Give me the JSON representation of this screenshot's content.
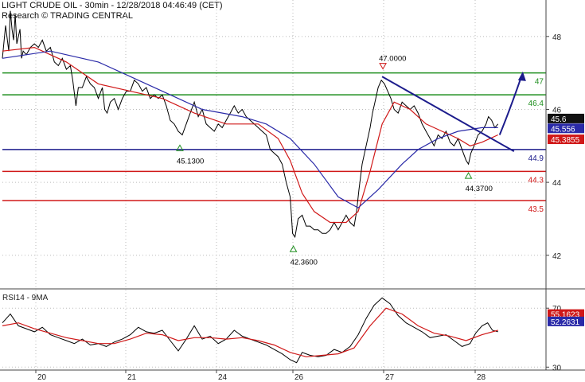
{
  "header": {
    "line1": "LIGHT CRUDE OIL - 30min - 12/28/2018 04:46:49 (CET)",
    "line2": "Research © TRADING CENTRAL"
  },
  "rsi_label": "RSI14 - 9MA",
  "chart_data": {
    "type": "line",
    "price_axis": {
      "ylim": [
        41.1,
        49.0
      ],
      "ticks": [
        "48",
        "46",
        "44",
        "42"
      ]
    },
    "rsi_axis": {
      "ylim": [
        28,
        82
      ],
      "ticks": [
        "70",
        "30"
      ]
    },
    "x_labels": [
      "20",
      "21",
      "24",
      "26",
      "27",
      "28"
    ],
    "levels": [
      {
        "value": 47.0,
        "label": "47",
        "color": "#1f8f1f"
      },
      {
        "value": 46.4,
        "label": "46.4",
        "color": "#1f8f1f"
      },
      {
        "value": 44.9,
        "label": "44.9",
        "color": "#1c1c8c"
      },
      {
        "value": 44.3,
        "label": "44.3",
        "color": "#d01818"
      },
      {
        "value": 43.5,
        "label": "43.5",
        "color": "#d01818"
      }
    ],
    "annotations": [
      {
        "label": "47.0000",
        "value": 47.0,
        "kind": "high"
      },
      {
        "label": "45.1300",
        "value": 45.13,
        "kind": "low"
      },
      {
        "label": "42.3600",
        "value": 42.36,
        "kind": "low"
      },
      {
        "label": "44.3700",
        "value": 44.37,
        "kind": "low"
      }
    ],
    "price_badges": [
      {
        "label": "45.6",
        "bg": "#111111",
        "fg": "#ffffff"
      },
      {
        "label": "45.556",
        "bg": "#2a2aa8",
        "fg": "#ffffff"
      },
      {
        "label": "45.3855",
        "bg": "#d01818",
        "fg": "#ffffff"
      }
    ],
    "rsi_badges": [
      {
        "label": "55.1623",
        "bg": "#d01818",
        "fg": "#ffffff"
      },
      {
        "label": "52.2631",
        "bg": "#2a2aa8",
        "fg": "#ffffff"
      }
    ],
    "series": [
      {
        "name": "price",
        "color": "#000000",
        "values": [
          [
            0,
            47.4
          ],
          [
            4,
            48.3
          ],
          [
            8,
            47.6
          ],
          [
            10,
            48.7
          ],
          [
            12,
            48.2
          ],
          [
            14,
            47.9
          ],
          [
            16,
            48.6
          ],
          [
            18,
            47.8
          ],
          [
            22,
            48.2
          ],
          [
            24,
            47.4
          ],
          [
            26,
            47.6
          ],
          [
            30,
            47.5
          ],
          [
            35,
            47.7
          ],
          [
            40,
            47.8
          ],
          [
            45,
            47.7
          ],
          [
            50,
            47.9
          ],
          [
            55,
            47.6
          ],
          [
            60,
            47.7
          ],
          [
            65,
            47.3
          ],
          [
            70,
            47.2
          ],
          [
            75,
            47.4
          ],
          [
            80,
            47.1
          ],
          [
            85,
            47.2
          ],
          [
            88,
            46.8
          ],
          [
            92,
            46.1
          ],
          [
            95,
            46.6
          ],
          [
            100,
            46.6
          ],
          [
            105,
            46.9
          ],
          [
            110,
            46.7
          ],
          [
            115,
            46.6
          ],
          [
            120,
            46.3
          ],
          [
            125,
            46.6
          ],
          [
            128,
            46.0
          ],
          [
            131,
            45.9
          ],
          [
            135,
            46.2
          ],
          [
            140,
            46.3
          ],
          [
            145,
            46.0
          ],
          [
            150,
            46.3
          ],
          [
            155,
            46.5
          ],
          [
            160,
            46.5
          ],
          [
            165,
            46.8
          ],
          [
            170,
            46.7
          ],
          [
            175,
            46.5
          ],
          [
            180,
            46.6
          ],
          [
            185,
            46.3
          ],
          [
            190,
            46.4
          ],
          [
            195,
            46.3
          ],
          [
            200,
            46.4
          ],
          [
            205,
            46.1
          ],
          [
            210,
            45.7
          ],
          [
            215,
            45.6
          ],
          [
            220,
            45.4
          ],
          [
            225,
            45.3
          ],
          [
            230,
            45.6
          ],
          [
            235,
            45.9
          ],
          [
            240,
            46.2
          ],
          [
            245,
            45.8
          ],
          [
            250,
            46.0
          ],
          [
            255,
            45.6
          ],
          [
            260,
            45.5
          ],
          [
            265,
            45.4
          ],
          [
            270,
            45.6
          ],
          [
            275,
            45.5
          ],
          [
            280,
            45.7
          ],
          [
            285,
            45.9
          ],
          [
            290,
            46.1
          ],
          [
            295,
            45.9
          ],
          [
            300,
            46.0
          ],
          [
            305,
            45.8
          ],
          [
            310,
            45.7
          ],
          [
            315,
            45.6
          ],
          [
            320,
            45.5
          ],
          [
            325,
            45.4
          ],
          [
            330,
            45.3
          ],
          [
            335,
            44.9
          ],
          [
            340,
            44.8
          ],
          [
            345,
            44.7
          ],
          [
            350,
            44.5
          ],
          [
            355,
            44.0
          ],
          [
            360,
            43.6
          ],
          [
            363,
            42.6
          ],
          [
            366,
            42.5
          ],
          [
            370,
            43.0
          ],
          [
            375,
            43.1
          ],
          [
            380,
            42.8
          ],
          [
            385,
            42.8
          ],
          [
            390,
            42.7
          ],
          [
            395,
            42.7
          ],
          [
            400,
            42.6
          ],
          [
            405,
            42.6
          ],
          [
            410,
            42.7
          ],
          [
            415,
            42.9
          ],
          [
            420,
            42.7
          ],
          [
            425,
            42.9
          ],
          [
            430,
            43.1
          ],
          [
            435,
            42.9
          ],
          [
            440,
            42.8
          ],
          [
            443,
            43.2
          ],
          [
            446,
            43.8
          ],
          [
            450,
            44.5
          ],
          [
            455,
            45.0
          ],
          [
            460,
            45.5
          ],
          [
            463,
            45.9
          ],
          [
            466,
            46.2
          ],
          [
            470,
            46.6
          ],
          [
            474,
            46.8
          ],
          [
            478,
            46.7
          ],
          [
            482,
            46.5
          ],
          [
            486,
            46.3
          ],
          [
            490,
            46.0
          ],
          [
            495,
            45.9
          ],
          [
            500,
            46.2
          ],
          [
            505,
            46.1
          ],
          [
            510,
            46.0
          ],
          [
            515,
            46.1
          ],
          [
            520,
            45.9
          ],
          [
            525,
            45.6
          ],
          [
            530,
            45.4
          ],
          [
            535,
            45.2
          ],
          [
            540,
            45.0
          ],
          [
            545,
            45.3
          ],
          [
            550,
            45.2
          ],
          [
            555,
            45.4
          ],
          [
            560,
            45.1
          ],
          [
            565,
            45.0
          ],
          [
            570,
            45.2
          ],
          [
            575,
            44.9
          ],
          [
            580,
            44.6
          ],
          [
            583,
            44.5
          ],
          [
            586,
            44.8
          ],
          [
            590,
            45.0
          ],
          [
            595,
            45.3
          ],
          [
            600,
            45.4
          ],
          [
            605,
            45.6
          ],
          [
            608,
            45.8
          ],
          [
            612,
            45.7
          ],
          [
            616,
            45.5
          ],
          [
            620,
            45.6
          ]
        ]
      },
      {
        "name": "ma-red",
        "color": "#d01818",
        "values": [
          [
            0,
            47.6
          ],
          [
            40,
            47.7
          ],
          [
            80,
            47.3
          ],
          [
            120,
            46.7
          ],
          [
            160,
            46.5
          ],
          [
            200,
            46.3
          ],
          [
            240,
            45.9
          ],
          [
            280,
            45.6
          ],
          [
            320,
            45.6
          ],
          [
            345,
            45.2
          ],
          [
            360,
            44.6
          ],
          [
            375,
            43.7
          ],
          [
            390,
            43.2
          ],
          [
            410,
            42.9
          ],
          [
            430,
            42.9
          ],
          [
            445,
            43.2
          ],
          [
            460,
            44.3
          ],
          [
            475,
            45.6
          ],
          [
            490,
            46.2
          ],
          [
            510,
            46.0
          ],
          [
            530,
            45.6
          ],
          [
            550,
            45.4
          ],
          [
            570,
            45.2
          ],
          [
            585,
            45.0
          ],
          [
            600,
            45.1
          ],
          [
            620,
            45.3
          ]
        ]
      },
      {
        "name": "ma-blue",
        "color": "#2a2aa8",
        "values": [
          [
            0,
            47.4
          ],
          [
            60,
            47.6
          ],
          [
            120,
            47.3
          ],
          [
            160,
            46.9
          ],
          [
            200,
            46.5
          ],
          [
            250,
            46.0
          ],
          [
            300,
            45.8
          ],
          [
            330,
            45.6
          ],
          [
            360,
            45.2
          ],
          [
            390,
            44.5
          ],
          [
            420,
            43.6
          ],
          [
            445,
            43.3
          ],
          [
            470,
            43.8
          ],
          [
            500,
            44.5
          ],
          [
            520,
            44.9
          ],
          [
            545,
            45.2
          ],
          [
            570,
            45.4
          ],
          [
            600,
            45.5
          ],
          [
            620,
            45.5
          ]
        ]
      },
      {
        "name": "rsi",
        "color": "#000000",
        "values": [
          [
            0,
            60
          ],
          [
            10,
            66
          ],
          [
            20,
            58
          ],
          [
            30,
            56
          ],
          [
            40,
            54
          ],
          [
            50,
            57
          ],
          [
            60,
            52
          ],
          [
            70,
            50
          ],
          [
            80,
            48
          ],
          [
            90,
            46
          ],
          [
            100,
            49
          ],
          [
            110,
            45
          ],
          [
            120,
            46
          ],
          [
            130,
            44
          ],
          [
            140,
            47
          ],
          [
            150,
            49
          ],
          [
            160,
            52
          ],
          [
            170,
            57
          ],
          [
            180,
            54
          ],
          [
            190,
            53
          ],
          [
            200,
            55
          ],
          [
            210,
            48
          ],
          [
            220,
            41
          ],
          [
            230,
            49
          ],
          [
            240,
            58
          ],
          [
            250,
            49
          ],
          [
            260,
            51
          ],
          [
            270,
            46
          ],
          [
            280,
            49
          ],
          [
            290,
            55
          ],
          [
            300,
            51
          ],
          [
            310,
            49
          ],
          [
            320,
            47
          ],
          [
            330,
            45
          ],
          [
            340,
            42
          ],
          [
            350,
            39
          ],
          [
            360,
            35
          ],
          [
            368,
            33
          ],
          [
            375,
            40
          ],
          [
            385,
            38
          ],
          [
            395,
            37
          ],
          [
            405,
            38
          ],
          [
            415,
            42
          ],
          [
            425,
            40
          ],
          [
            435,
            44
          ],
          [
            445,
            52
          ],
          [
            455,
            63
          ],
          [
            465,
            72
          ],
          [
            475,
            77
          ],
          [
            485,
            73
          ],
          [
            495,
            65
          ],
          [
            505,
            60
          ],
          [
            515,
            57
          ],
          [
            525,
            54
          ],
          [
            535,
            50
          ],
          [
            545,
            51
          ],
          [
            555,
            52
          ],
          [
            565,
            48
          ],
          [
            575,
            44
          ],
          [
            585,
            46
          ],
          [
            592,
            53
          ],
          [
            600,
            58
          ],
          [
            607,
            60
          ],
          [
            613,
            55
          ],
          [
            620,
            54
          ]
        ]
      },
      {
        "name": "rsi-ma",
        "color": "#d01818",
        "values": [
          [
            0,
            58
          ],
          [
            20,
            60
          ],
          [
            40,
            56
          ],
          [
            60,
            53
          ],
          [
            80,
            50
          ],
          [
            100,
            48
          ],
          [
            120,
            46
          ],
          [
            140,
            46
          ],
          [
            160,
            49
          ],
          [
            180,
            53
          ],
          [
            200,
            52
          ],
          [
            220,
            48
          ],
          [
            240,
            50
          ],
          [
            260,
            50
          ],
          [
            280,
            49
          ],
          [
            300,
            50
          ],
          [
            320,
            48
          ],
          [
            340,
            45
          ],
          [
            360,
            40
          ],
          [
            380,
            37
          ],
          [
            400,
            38
          ],
          [
            420,
            39
          ],
          [
            440,
            43
          ],
          [
            460,
            58
          ],
          [
            480,
            70
          ],
          [
            500,
            66
          ],
          [
            520,
            58
          ],
          [
            540,
            53
          ],
          [
            560,
            51
          ],
          [
            580,
            48
          ],
          [
            600,
            52
          ],
          [
            620,
            55
          ]
        ]
      }
    ]
  }
}
